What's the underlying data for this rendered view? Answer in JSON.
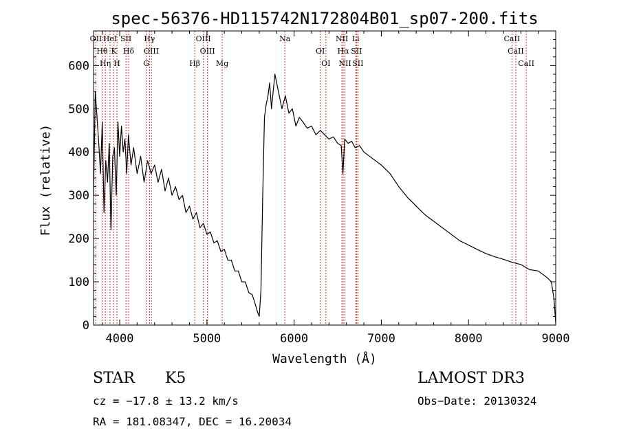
{
  "chart_data": {
    "type": "line",
    "title": "spec-56376-HD115742N172804B01_sp07-200.fits",
    "xlabel": "Wavelength (Å)",
    "ylabel": "Flux (relative)",
    "xlim": [
      3700,
      9000
    ],
    "ylim": [
      0,
      680
    ],
    "x_ticks": [
      4000,
      5000,
      6000,
      7000,
      8000,
      9000
    ],
    "y_ticks": [
      0,
      100,
      200,
      300,
      400,
      500,
      600
    ],
    "x_tick_labels": [
      "4000",
      "5000",
      "6000",
      "7000",
      "8000",
      "9000"
    ],
    "y_tick_labels": [
      "0",
      "100",
      "200",
      "300",
      "400",
      "500",
      "600"
    ],
    "series": [
      {
        "name": "flux",
        "x": [
          3700,
          3720,
          3740,
          3760,
          3780,
          3800,
          3820,
          3840,
          3860,
          3880,
          3900,
          3920,
          3940,
          3960,
          3980,
          4000,
          4020,
          4040,
          4060,
          4080,
          4100,
          4130,
          4160,
          4200,
          4240,
          4280,
          4320,
          4360,
          4400,
          4440,
          4480,
          4520,
          4560,
          4600,
          4640,
          4680,
          4720,
          4760,
          4800,
          4840,
          4880,
          4920,
          4960,
          5000,
          5040,
          5080,
          5120,
          5160,
          5200,
          5240,
          5280,
          5320,
          5360,
          5400,
          5440,
          5480,
          5520,
          5560,
          5580,
          5600,
          5620,
          5640,
          5660,
          5680,
          5700,
          5720,
          5740,
          5780,
          5820,
          5860,
          5900,
          5940,
          5980,
          6020,
          6060,
          6100,
          6150,
          6200,
          6250,
          6300,
          6350,
          6400,
          6450,
          6500,
          6540,
          6560,
          6580,
          6620,
          6660,
          6700,
          6750,
          6800,
          6900,
          7000,
          7100,
          7200,
          7300,
          7400,
          7500,
          7600,
          7700,
          7800,
          7900,
          8000,
          8100,
          8200,
          8300,
          8400,
          8500,
          8600,
          8700,
          8800,
          8900,
          8950,
          8980,
          9000
        ],
        "values": [
          300,
          540,
          480,
          420,
          350,
          470,
          260,
          380,
          330,
          420,
          220,
          390,
          410,
          300,
          470,
          390,
          460,
          400,
          430,
          350,
          440,
          370,
          410,
          350,
          390,
          330,
          380,
          350,
          370,
          330,
          360,
          310,
          340,
          300,
          320,
          290,
          300,
          260,
          275,
          245,
          260,
          225,
          235,
          210,
          215,
          190,
          195,
          170,
          175,
          150,
          150,
          125,
          125,
          100,
          100,
          75,
          70,
          45,
          30,
          20,
          80,
          300,
          480,
          510,
          530,
          560,
          500,
          580,
          540,
          500,
          530,
          490,
          500,
          460,
          480,
          470,
          455,
          460,
          440,
          450,
          440,
          430,
          435,
          420,
          415,
          350,
          430,
          420,
          425,
          410,
          415,
          400,
          385,
          370,
          350,
          320,
          295,
          275,
          255,
          240,
          225,
          210,
          195,
          185,
          175,
          165,
          158,
          152,
          145,
          140,
          128,
          125,
          110,
          100,
          60,
          5
        ]
      }
    ],
    "line_labels": [
      {
        "name": "OII",
        "x": 3727
      },
      {
        "name": "Hθ",
        "x": 3798
      },
      {
        "name": "Hη",
        "x": 3835
      },
      {
        "name": "HeI",
        "x": 3889
      },
      {
        "name": "K",
        "x": 3934
      },
      {
        "name": "H",
        "x": 3969
      },
      {
        "name": "SII",
        "x": 4072
      },
      {
        "name": "Hδ",
        "x": 4102
      },
      {
        "name": "G",
        "x": 4305
      },
      {
        "name": "Hγ",
        "x": 4341
      },
      {
        "name": "OIII",
        "x": 4363
      },
      {
        "name": "Hβ",
        "x": 4861
      },
      {
        "name": "OIII",
        "x": 4959
      },
      {
        "name": "OIII",
        "x": 5007
      },
      {
        "name": "Mg",
        "x": 5175
      },
      {
        "name": "Na",
        "x": 5894
      },
      {
        "name": "OI",
        "x": 6300
      },
      {
        "name": "OI",
        "x": 6364
      },
      {
        "name": "NII",
        "x": 6548
      },
      {
        "name": "Hα",
        "x": 6563
      },
      {
        "name": "NII",
        "x": 6583
      },
      {
        "name": "Li",
        "x": 6707
      },
      {
        "name": "SII",
        "x": 6716
      },
      {
        "name": "SII",
        "x": 6731
      },
      {
        "name": "CaII",
        "x": 8498
      },
      {
        "name": "CaII",
        "x": 8542
      },
      {
        "name": "CaII",
        "x": 8662
      }
    ]
  },
  "info": {
    "object_class": "STAR",
    "subclass": "K5",
    "survey": "LAMOST DR3",
    "cz": "cz = −17.8 ± 13.2 km/s",
    "obs_date": "Obs−Date: 20130324",
    "coords": "RA = 181.08347, DEC =  16.20034"
  },
  "colors": {
    "line_marker": "#c83232",
    "spectrum": "#000000",
    "axes": "#000000"
  }
}
